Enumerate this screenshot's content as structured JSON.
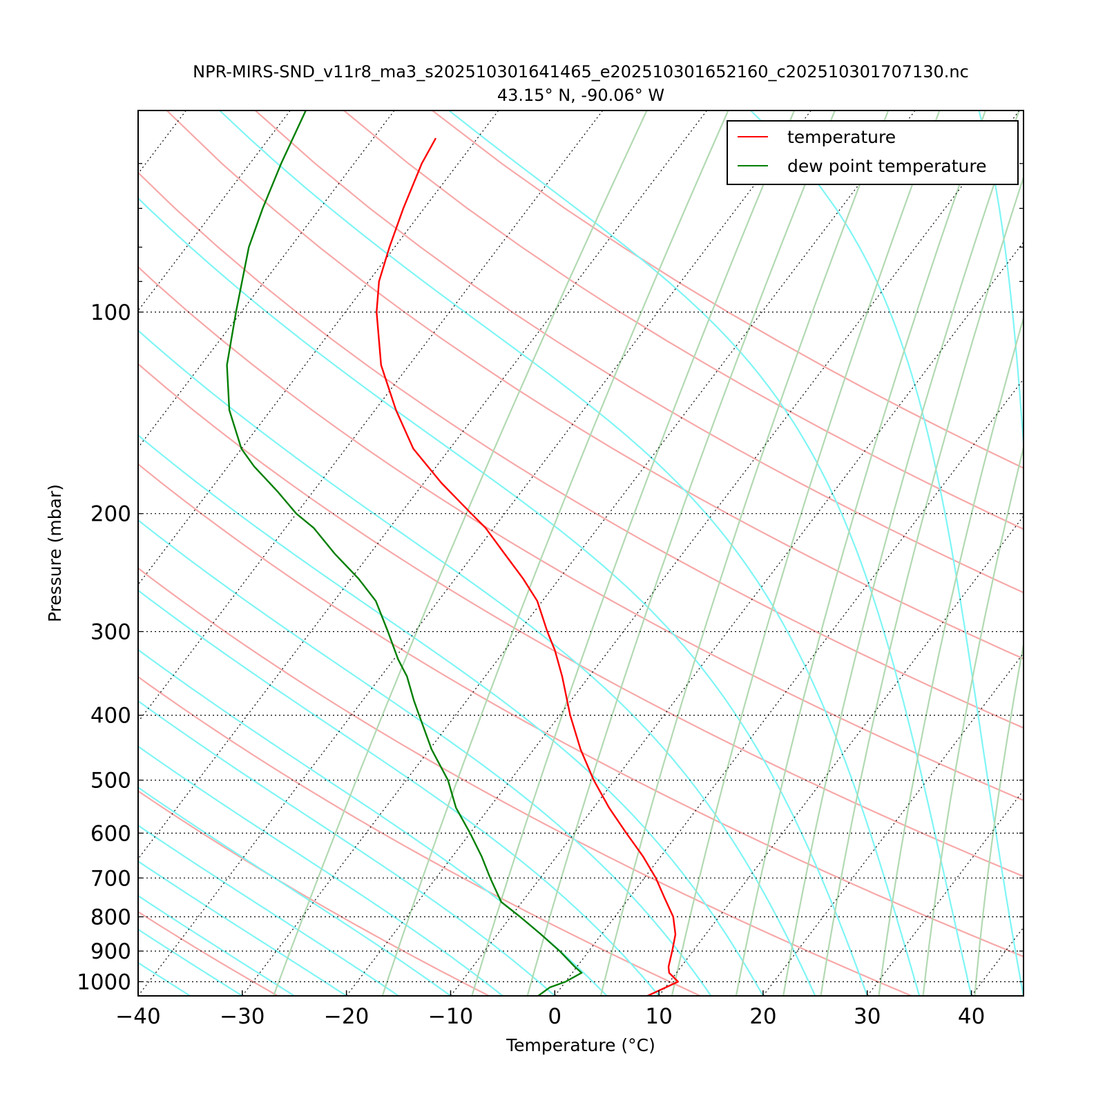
{
  "chart_data": {
    "type": "line",
    "title": "NPR-MIRS-SND_v11r8_ma3_s202510301641465_e202510301652160_c202510301707130.nc",
    "subtitle": "43.15° N, -90.06° W",
    "xlabel": "Temperature (°C)",
    "ylabel": "Pressure (mbar)",
    "xlim": [
      -40,
      45
    ],
    "ylim": [
      1050,
      50
    ],
    "y_scale": "log",
    "x_ticks": [
      -40,
      -30,
      -20,
      -10,
      0,
      10,
      20,
      30,
      40
    ],
    "x_tick_labels": [
      "−40",
      "−30",
      "−20",
      "−10",
      "0",
      "10",
      "20",
      "30",
      "40"
    ],
    "y_ticks": [
      1000,
      900,
      800,
      700,
      600,
      500,
      400,
      300,
      200,
      100
    ],
    "y_tick_labels": [
      "1000",
      "900",
      "800",
      "700",
      "600",
      "500",
      "400",
      "300",
      "200",
      "100"
    ],
    "legend": {
      "placement": "top-right",
      "entries": [
        "temperature",
        "dew point temperature"
      ]
    },
    "background_lines": {
      "isotherms_skewed": "dotted black",
      "dry_adiabats": "light red",
      "moist_adiabats": "cyan",
      "mixing_ratio_lines": "light green"
    },
    "series": [
      {
        "name": "temperature",
        "color": "#ff0000",
        "pressure": [
          1050,
          1000,
          970,
          950,
          900,
          850,
          800,
          750,
          700,
          650,
          600,
          550,
          500,
          450,
          400,
          350,
          320,
          300,
          270,
          250,
          230,
          210,
          200,
          180,
          160,
          140,
          120,
          100,
          90,
          80,
          70,
          60,
          55
        ],
        "temperature": [
          8.9,
          10.8,
          9.3,
          8.8,
          8.0,
          7.1,
          5.6,
          3.4,
          1.1,
          -1.7,
          -5.0,
          -8.5,
          -12.0,
          -15.5,
          -19.0,
          -22.6,
          -25.2,
          -27.3,
          -30.5,
          -33.5,
          -37.0,
          -40.8,
          -43.2,
          -48.3,
          -53.5,
          -58.0,
          -62.7,
          -67.0,
          -69.0,
          -70.5,
          -72.0,
          -73.5,
          -74.0
        ]
      },
      {
        "name": "dew point temperature",
        "color": "#007f00",
        "pressure": [
          1050,
          1020,
          1000,
          970,
          950,
          900,
          850,
          800,
          760,
          700,
          650,
          600,
          550,
          500,
          450,
          400,
          380,
          350,
          330,
          300,
          270,
          250,
          230,
          210,
          200,
          185,
          170,
          160,
          140,
          120,
          100,
          80,
          70,
          60,
          50
        ],
        "temperature": [
          -1.6,
          -1.1,
          0.0,
          0.9,
          -0.2,
          -2.8,
          -5.8,
          -9.1,
          -12.0,
          -14.8,
          -17.2,
          -20.0,
          -23.2,
          -26.0,
          -29.8,
          -33.5,
          -35.1,
          -37.5,
          -39.6,
          -42.6,
          -46.0,
          -49.3,
          -53.3,
          -57.3,
          -60.0,
          -63.5,
          -67.5,
          -70.0,
          -74.0,
          -77.5,
          -80.5,
          -84.0,
          -85.5,
          -87.0,
          -88.5
        ]
      }
    ]
  }
}
